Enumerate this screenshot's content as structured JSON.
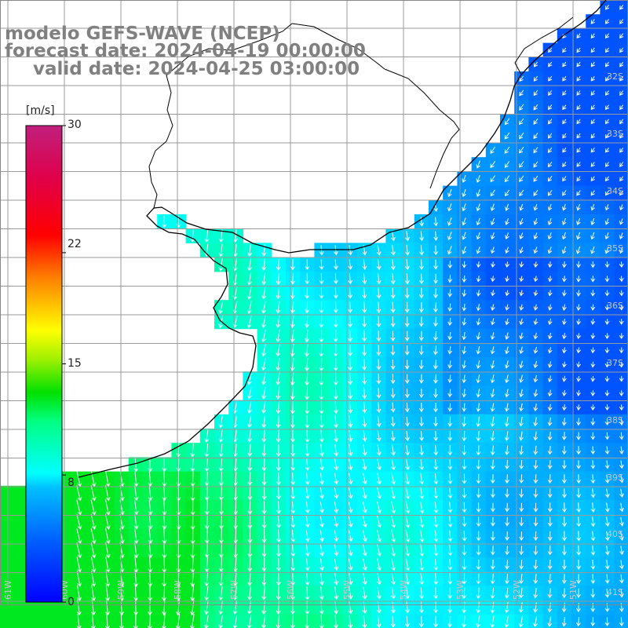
{
  "title": {
    "line1": "modelo GEFS-WAVE (NCEP)",
    "line2": "forecast date: 2024-04-19 00:00:00",
    "line3": "valid date: 2024-04-25 03:00:00"
  },
  "colorbar": {
    "unit": "[m/s]",
    "ticks": [
      "30",
      "22",
      "15",
      "8",
      "0"
    ],
    "tick_values": [
      30,
      22,
      15,
      8,
      0
    ],
    "colors": [
      "#0000ff",
      "#0060ff",
      "#00c0ff",
      "#00ffff",
      "#00ff80",
      "#00e000",
      "#80ff00",
      "#ffff00",
      "#ff8000",
      "#ff0000",
      "#d0004a",
      "#c0207c"
    ]
  },
  "lat_labels": [
    "32S",
    "33S",
    "34S",
    "35S",
    "36S",
    "37S",
    "38S",
    "39S",
    "40S",
    "41S"
  ],
  "lon_labels": [
    "61W",
    "60W",
    "59W",
    "58W",
    "57W",
    "56W",
    "55W",
    "54W",
    "53W",
    "52W",
    "51W"
  ],
  "field": {
    "variable": "wind speed",
    "unit": "m/s",
    "range": [
      0,
      30
    ],
    "ocean_speed_min": 2,
    "ocean_speed_max": 12,
    "dominant_direction": "southward"
  },
  "colors": {
    "title": "#808080",
    "grid": "#9a9a9a",
    "coast": "#000000",
    "arrow": "#ffffff",
    "lat_label": "#c8c8c8"
  }
}
